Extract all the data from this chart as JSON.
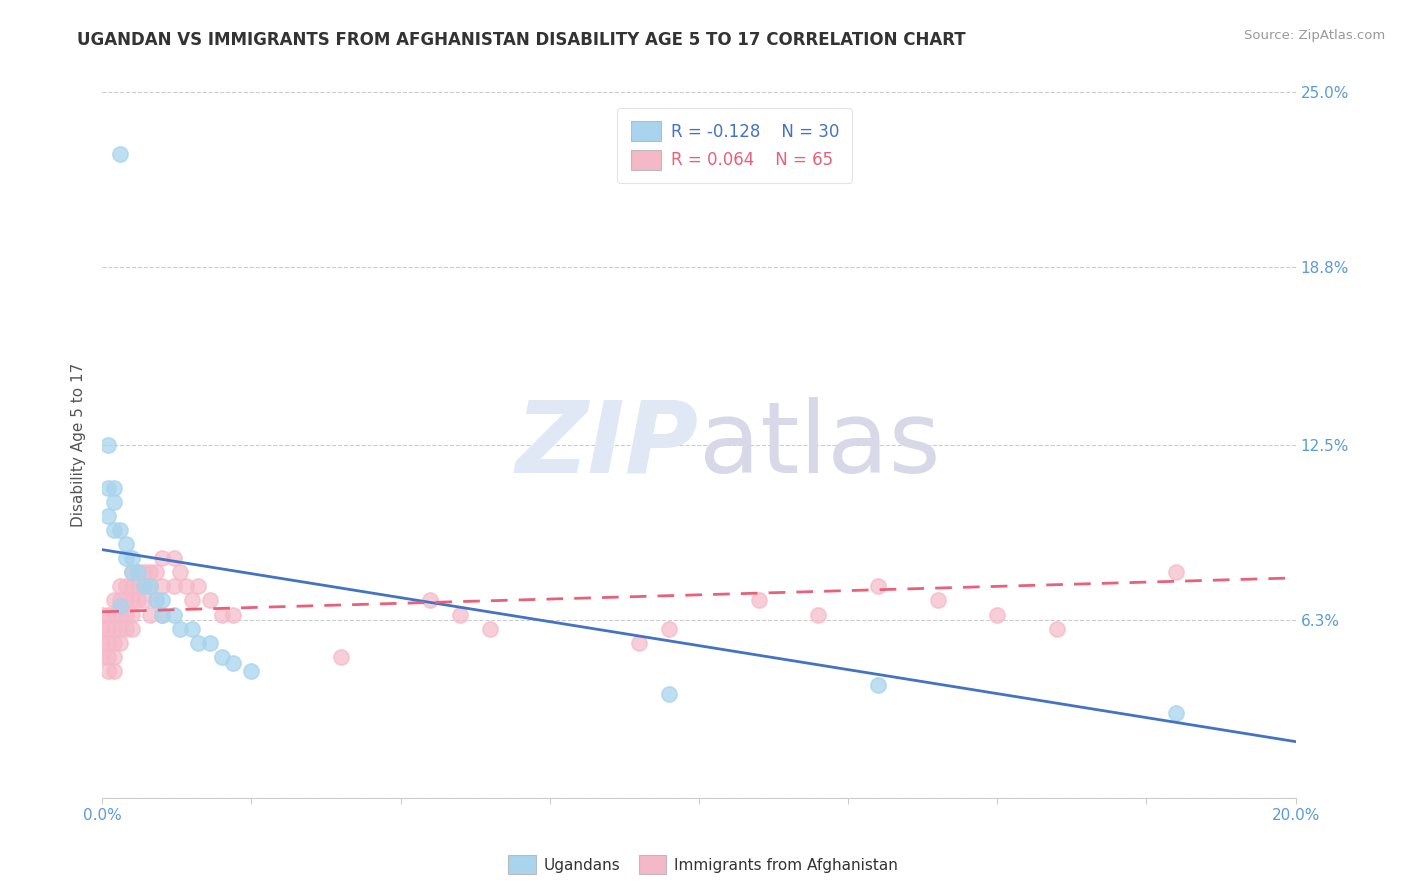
{
  "title": "UGANDAN VS IMMIGRANTS FROM AFGHANISTAN DISABILITY AGE 5 TO 17 CORRELATION CHART",
  "source": "Source: ZipAtlas.com",
  "ylabel": "Disability Age 5 to 17",
  "xlim": [
    0.0,
    0.2
  ],
  "ylim": [
    0.0,
    0.25
  ],
  "yticks": [
    0.0,
    0.063,
    0.125,
    0.188,
    0.25
  ],
  "ytick_labels": [
    "",
    "6.3%",
    "12.5%",
    "18.8%",
    "25.0%"
  ],
  "legend_r1": "R = -0.128",
  "legend_n1": "N = 30",
  "legend_r2": "R = 0.064",
  "legend_n2": "N = 65",
  "color_ugandan": "#A8D4ED",
  "color_afghan": "#F5B8C8",
  "line_color_ugandan": "#4472C4",
  "line_color_afghan": "#E8607A",
  "ugandan_x": [
    0.003,
    0.001,
    0.001,
    0.001,
    0.002,
    0.002,
    0.002,
    0.003,
    0.004,
    0.004,
    0.005,
    0.005,
    0.006,
    0.007,
    0.008,
    0.009,
    0.01,
    0.01,
    0.012,
    0.013,
    0.015,
    0.016,
    0.018,
    0.02,
    0.022,
    0.025,
    0.003,
    0.18,
    0.095,
    0.13
  ],
  "ugandan_y": [
    0.228,
    0.125,
    0.11,
    0.1,
    0.11,
    0.105,
    0.095,
    0.095,
    0.09,
    0.085,
    0.085,
    0.08,
    0.08,
    0.075,
    0.075,
    0.07,
    0.07,
    0.065,
    0.065,
    0.06,
    0.06,
    0.055,
    0.055,
    0.05,
    0.048,
    0.045,
    0.068,
    0.03,
    0.037,
    0.04
  ],
  "afghan_x": [
    0.0,
    0.0,
    0.0,
    0.0,
    0.001,
    0.001,
    0.001,
    0.001,
    0.001,
    0.002,
    0.002,
    0.002,
    0.002,
    0.002,
    0.002,
    0.003,
    0.003,
    0.003,
    0.003,
    0.003,
    0.004,
    0.004,
    0.004,
    0.004,
    0.005,
    0.005,
    0.005,
    0.005,
    0.005,
    0.006,
    0.006,
    0.006,
    0.007,
    0.007,
    0.007,
    0.008,
    0.008,
    0.008,
    0.009,
    0.009,
    0.01,
    0.01,
    0.01,
    0.012,
    0.012,
    0.013,
    0.014,
    0.015,
    0.016,
    0.018,
    0.02,
    0.022,
    0.04,
    0.055,
    0.06,
    0.065,
    0.09,
    0.095,
    0.11,
    0.12,
    0.13,
    0.14,
    0.15,
    0.16,
    0.18
  ],
  "afghan_y": [
    0.065,
    0.06,
    0.055,
    0.05,
    0.065,
    0.06,
    0.055,
    0.05,
    0.045,
    0.07,
    0.065,
    0.06,
    0.055,
    0.05,
    0.045,
    0.075,
    0.07,
    0.065,
    0.06,
    0.055,
    0.075,
    0.07,
    0.065,
    0.06,
    0.08,
    0.075,
    0.07,
    0.065,
    0.06,
    0.08,
    0.075,
    0.07,
    0.08,
    0.075,
    0.07,
    0.08,
    0.075,
    0.065,
    0.08,
    0.07,
    0.085,
    0.075,
    0.065,
    0.085,
    0.075,
    0.08,
    0.075,
    0.07,
    0.075,
    0.07,
    0.065,
    0.065,
    0.05,
    0.07,
    0.065,
    0.06,
    0.055,
    0.06,
    0.07,
    0.065,
    0.075,
    0.07,
    0.065,
    0.06,
    0.08
  ],
  "watermark_zip": "ZIP",
  "watermark_atlas": "atlas",
  "background_color": "#FFFFFF"
}
